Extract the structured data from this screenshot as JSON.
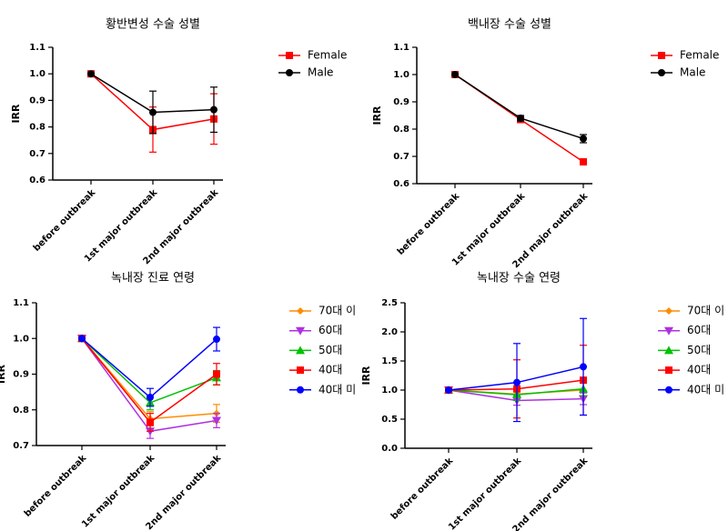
{
  "chart_data": [
    {
      "type": "line",
      "title": "황반변성 수술 성별",
      "y_label": "IRR",
      "categories": [
        "before outbreak",
        "1st major outbreak",
        "2nd major outbreak"
      ],
      "ylim": [
        0.6,
        1.1
      ],
      "yticks": [
        0.6,
        0.7,
        0.8,
        0.9,
        {
          "value": 1.0,
          "label": "1.0"
        },
        1.1
      ],
      "series": [
        {
          "name": "Female",
          "color": "#ff0000",
          "marker": "square",
          "values": [
            1.0,
            0.79,
            0.83
          ],
          "errors": [
            0,
            0.085,
            0.095
          ]
        },
        {
          "name": "Male",
          "color": "#000000",
          "marker": "circle",
          "values": [
            1.0,
            0.855,
            0.865
          ],
          "errors": [
            0,
            0.08,
            0.085
          ]
        }
      ]
    },
    {
      "type": "line",
      "title": "백내장 수술 성별",
      "y_label": "IRR",
      "categories": [
        "before outbreak",
        "1st major outbreak",
        "2nd major outbreak"
      ],
      "ylim": [
        0.6,
        1.1
      ],
      "yticks": [
        0.6,
        0.7,
        0.8,
        0.9,
        {
          "value": 1.0,
          "label": "1.0"
        },
        1.1
      ],
      "series": [
        {
          "name": "Female",
          "color": "#ff0000",
          "marker": "square",
          "values": [
            1.0,
            0.835,
            0.68
          ],
          "errors": [
            0,
            0.01,
            0.01
          ]
        },
        {
          "name": "Male",
          "color": "#000000",
          "marker": "circle",
          "values": [
            1.0,
            0.84,
            0.765
          ],
          "errors": [
            0,
            0.01,
            0.015
          ]
        }
      ]
    },
    {
      "type": "line",
      "title": "녹내장 진료 연령",
      "y_label": "IRR",
      "categories": [
        "before outbreak",
        "1st major outbreak",
        "2nd major outbreak"
      ],
      "ylim": [
        0.7,
        1.1
      ],
      "yticks": [
        0.7,
        0.8,
        0.9,
        {
          "value": 1.0,
          "label": "1.0"
        },
        1.1
      ],
      "series": [
        {
          "name": "70대 이",
          "color": "#ff8c00",
          "marker": "diamond",
          "values": [
            1.0,
            0.775,
            0.79
          ],
          "errors": [
            0,
            0.02,
            0.025
          ]
        },
        {
          "name": "60대",
          "color": "#b030e0",
          "marker": "down",
          "values": [
            1.0,
            0.74,
            0.77
          ],
          "errors": [
            0,
            0.02,
            0.02
          ]
        },
        {
          "name": "50대",
          "color": "#00c000",
          "marker": "up",
          "values": [
            1.0,
            0.82,
            0.89
          ],
          "errors": [
            0,
            0.02,
            0.02
          ]
        },
        {
          "name": "40대",
          "color": "#ff0000",
          "marker": "square",
          "values": [
            1.0,
            0.765,
            0.9
          ],
          "errors": [
            0,
            0.025,
            0.03
          ]
        },
        {
          "name": "40대 미",
          "color": "#0000ff",
          "marker": "circle",
          "values": [
            1.0,
            0.835,
            0.998
          ],
          "errors": [
            0,
            0.025,
            0.033
          ]
        }
      ]
    },
    {
      "type": "line",
      "title": "녹내장 수술 연령",
      "y_label": "IRR",
      "categories": [
        "before outbreak",
        "1st major outbreak",
        "2nd major outbreak"
      ],
      "ylim": [
        0,
        2.5
      ],
      "yticks": [
        {
          "value": 0,
          "label": "0.0"
        },
        0.5,
        {
          "value": 1.0,
          "label": "1.0"
        },
        1.5,
        {
          "value": 2.0,
          "label": "2.0"
        },
        2.5
      ],
      "series": [
        {
          "name": "70대 이",
          "color": "#ff8c00",
          "marker": "diamond",
          "values": [
            1.0,
            0.93,
            1.0
          ],
          "errors": [
            0,
            0.1,
            0.12
          ]
        },
        {
          "name": "60대",
          "color": "#b030e0",
          "marker": "down",
          "values": [
            1.0,
            0.82,
            0.85
          ],
          "errors": [
            0,
            0.08,
            0.1
          ]
        },
        {
          "name": "50대",
          "color": "#00c000",
          "marker": "up",
          "values": [
            1.0,
            0.92,
            1.02
          ],
          "errors": [
            0,
            0.1,
            0.12
          ]
        },
        {
          "name": "40대",
          "color": "#ff0000",
          "marker": "square",
          "values": [
            1.0,
            1.02,
            1.17
          ],
          "errors": [
            0,
            0.5,
            0.6
          ]
        },
        {
          "name": "40대 미",
          "color": "#0000ff",
          "marker": "circle",
          "values": [
            1.0,
            1.13,
            1.4
          ],
          "errors": [
            0,
            0.67,
            0.83
          ]
        }
      ]
    }
  ]
}
